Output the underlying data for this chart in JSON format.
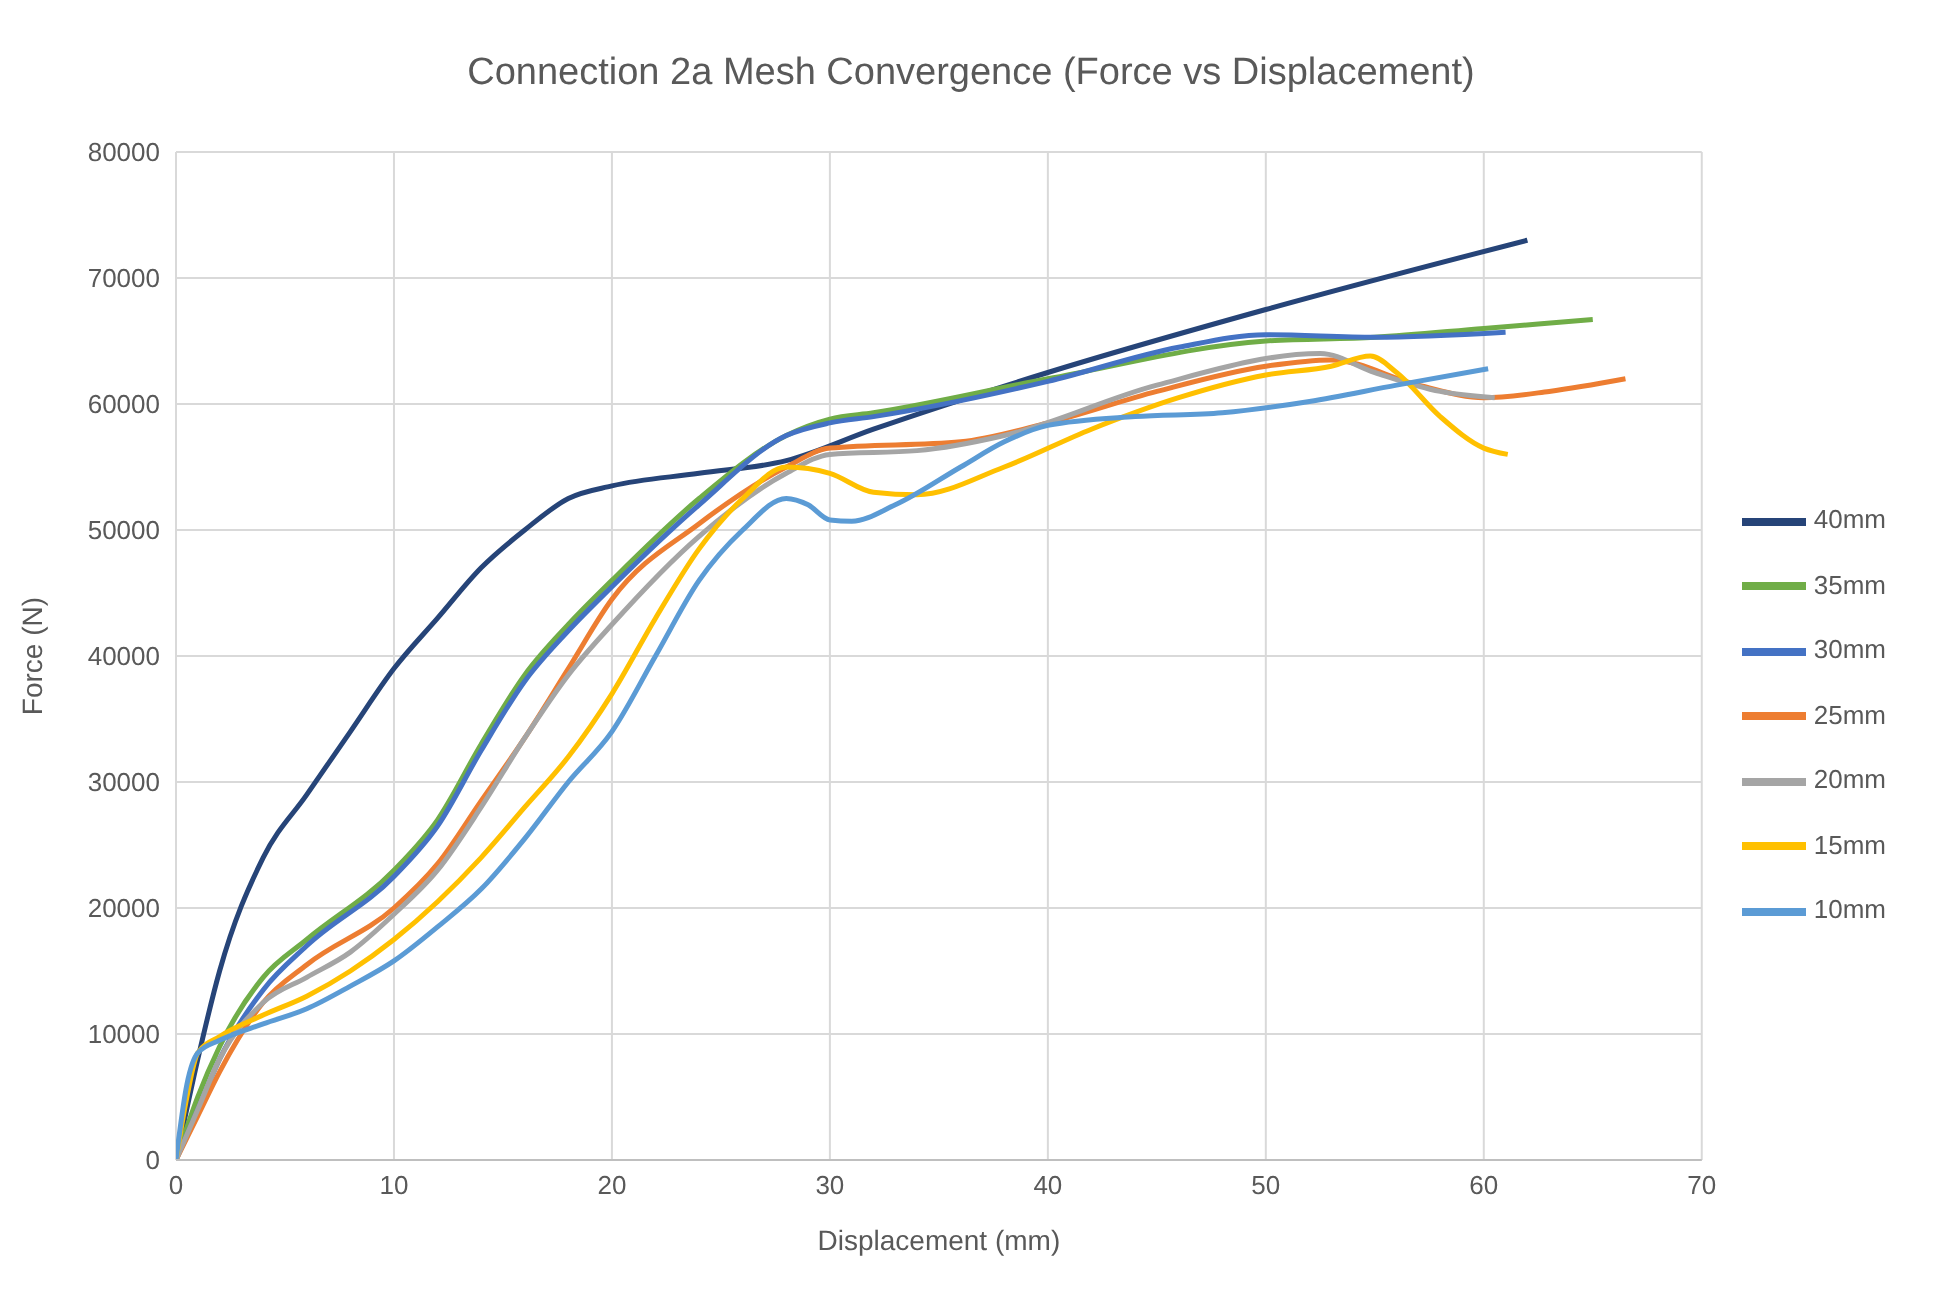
{
  "chart_data": {
    "type": "line",
    "title": "Connection 2a Mesh Convergence (Force vs Displacement)",
    "xlabel": "Displacement (mm)",
    "ylabel": "Force (N)",
    "xlim": [
      0,
      70
    ],
    "xticks": [
      0,
      10,
      20,
      30,
      40,
      50,
      60,
      70
    ],
    "ylim": [
      0,
      80000
    ],
    "yticks": [
      0,
      10000,
      20000,
      30000,
      40000,
      50000,
      60000,
      70000,
      80000
    ],
    "grid": true,
    "legend": "right",
    "marker": "none",
    "line_style": "solid",
    "series": [
      {
        "name": "40mm",
        "color": "#264478",
        "x": [
          0,
          1,
          2,
          4,
          6,
          8,
          10,
          12,
          14,
          16,
          18,
          20,
          24,
          28,
          32,
          40,
          50,
          62
        ],
        "values": [
          0,
          8000,
          15000,
          24000,
          29000,
          34000,
          39000,
          43000,
          47000,
          50000,
          52500,
          53500,
          54500,
          55500,
          58000,
          62500,
          67500,
          73000
        ]
      },
      {
        "name": "35mm",
        "color": "#70ad47",
        "x": [
          0,
          1,
          2,
          4,
          6,
          10,
          12,
          14,
          16,
          18,
          20,
          24,
          28,
          30,
          32,
          40,
          50,
          55,
          60,
          65
        ],
        "values": [
          0,
          5000,
          9000,
          14500,
          17500,
          23000,
          27000,
          33000,
          38500,
          42500,
          46000,
          52500,
          57500,
          58800,
          59300,
          62000,
          65000,
          65300,
          66000,
          66700
        ]
      },
      {
        "name": "30mm",
        "color": "#4472c4",
        "x": [
          0,
          1,
          2,
          4,
          6,
          10,
          12,
          14,
          16,
          18,
          20,
          24,
          28,
          30,
          32,
          40,
          46,
          50,
          55,
          61
        ],
        "values": [
          0,
          4000,
          8000,
          13500,
          17000,
          22500,
          26500,
          32500,
          38000,
          42000,
          45500,
          52000,
          57500,
          58500,
          59000,
          61800,
          64500,
          65500,
          65300,
          65700
        ]
      },
      {
        "name": "25mm",
        "color": "#ed7d31",
        "x": [
          0,
          1,
          2,
          4,
          6,
          10,
          12,
          14,
          16,
          18,
          20,
          24,
          28,
          30,
          36,
          40,
          45,
          50,
          53,
          57,
          60,
          63,
          66.5
        ],
        "values": [
          0,
          3500,
          7000,
          12500,
          15500,
          20000,
          23500,
          28500,
          33500,
          39000,
          44500,
          50500,
          55000,
          56500,
          57000,
          58500,
          61000,
          63000,
          63500,
          61500,
          60500,
          61000,
          62000
        ]
      },
      {
        "name": "20mm",
        "color": "#a5a5a5",
        "x": [
          0,
          1,
          2,
          4,
          6,
          8,
          10,
          12,
          14,
          16,
          18,
          20,
          24,
          28,
          30,
          34,
          38,
          45,
          52.5,
          55,
          58,
          60.5
        ],
        "values": [
          0,
          4000,
          8000,
          12500,
          14500,
          16500,
          19500,
          23000,
          28000,
          33500,
          38500,
          42500,
          49500,
          54500,
          56000,
          56300,
          57500,
          61500,
          64000,
          62500,
          61000,
          60500
        ]
      },
      {
        "name": "15mm",
        "color": "#ffc000",
        "x": [
          0,
          0.5,
          1,
          2,
          4,
          6,
          8,
          10,
          12,
          14,
          16,
          18,
          20,
          22,
          24,
          26,
          28,
          30,
          32,
          34,
          38,
          42,
          46,
          50,
          53,
          54.8,
          56,
          58,
          60,
          61.1
        ],
        "values": [
          0,
          5000,
          8500,
          9800,
          11500,
          13000,
          15000,
          17500,
          20500,
          24000,
          28000,
          32000,
          37000,
          43000,
          48500,
          52500,
          55000,
          54500,
          53000,
          52800,
          55000,
          58000,
          60500,
          62300,
          63000,
          63800,
          62500,
          59000,
          56500,
          56000
        ]
      },
      {
        "name": "10mm",
        "color": "#5b9bd5",
        "x": [
          0,
          0.5,
          1,
          2,
          4,
          6,
          8,
          10,
          12,
          14,
          16,
          18,
          20,
          22,
          24,
          26,
          28,
          29,
          30,
          31,
          33,
          36,
          38,
          40,
          44,
          48,
          52,
          56,
          60.2
        ],
        "values": [
          0,
          6000,
          8500,
          9500,
          10800,
          12000,
          13800,
          15800,
          18500,
          21500,
          25500,
          30000,
          34000,
          40000,
          46000,
          50000,
          52500,
          52000,
          50800,
          50700,
          52000,
          55000,
          57000,
          58300,
          59000,
          59300,
          60200,
          61500,
          62800
        ]
      }
    ]
  }
}
